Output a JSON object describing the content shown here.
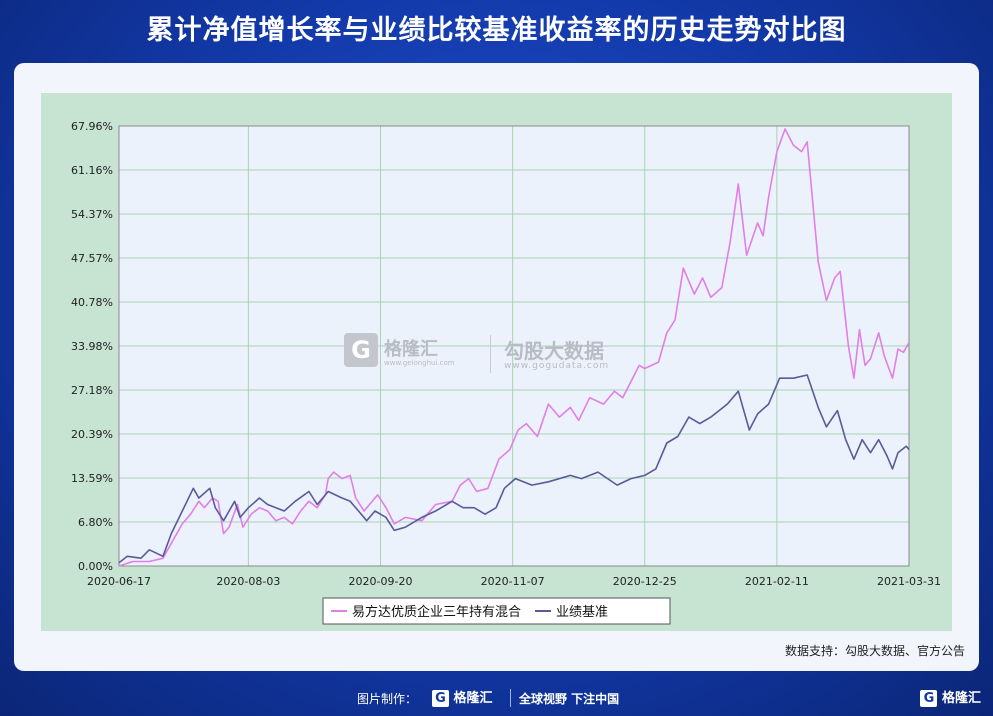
{
  "header": {
    "title": "累计净值增长率与业绩比较基准收益率的历史走势对比图"
  },
  "watermark": {
    "brand": "格隆汇",
    "brand_url": "www.gelonghui.com",
    "data_brand": "勾股大数据",
    "data_url": "www.gogudata.com",
    "logo_letter": "G"
  },
  "source_note": "数据支持：勾股大数据、官方公告",
  "footer": {
    "credit": "图片制作：",
    "logo_text": "格隆汇",
    "slogan": "全球视野 下注中国",
    "corner_logo": "格隆汇",
    "logo_letter": "G"
  },
  "colors": {
    "fund": "#e27ee8",
    "benchmark": "#5a5a9a",
    "plot_bg": "#ecf2fb",
    "frame_bg": "#c7e3d2",
    "grid": "#a9d3b4"
  },
  "chart_data": {
    "type": "line",
    "y_ticks": [
      "0.00%",
      "6.80%",
      "13.59%",
      "20.39%",
      "27.18%",
      "33.98%",
      "40.78%",
      "47.57%",
      "54.37%",
      "61.16%",
      "67.96%"
    ],
    "x_ticks": [
      "2020-06-17",
      "2020-08-03",
      "2020-09-20",
      "2020-11-07",
      "2020-12-25",
      "2021-02-11",
      "2021-03-31"
    ],
    "x_range": [
      "2020-06-17",
      "2021-03-31"
    ],
    "y_range": [
      0,
      67.96
    ],
    "y_unit": "%",
    "grid": true,
    "legend_position": "bottom-center",
    "series": [
      {
        "name": "易方达优质企业三年持有混合",
        "color": "#e27ee8",
        "points": [
          [
            "2020-06-17",
            0.0
          ],
          [
            "2020-06-22",
            0.7
          ],
          [
            "2020-06-28",
            0.7
          ],
          [
            "2020-07-03",
            1.2
          ],
          [
            "2020-07-06",
            3.5
          ],
          [
            "2020-07-10",
            6.5
          ],
          [
            "2020-07-13",
            8.0
          ],
          [
            "2020-07-16",
            10.0
          ],
          [
            "2020-07-18",
            9.0
          ],
          [
            "2020-07-21",
            10.5
          ],
          [
            "2020-07-23",
            10.0
          ],
          [
            "2020-07-25",
            5.0
          ],
          [
            "2020-07-27",
            6.0
          ],
          [
            "2020-07-30",
            9.5
          ],
          [
            "2020-08-01",
            6.0
          ],
          [
            "2020-08-04",
            8.0
          ],
          [
            "2020-08-07",
            9.0
          ],
          [
            "2020-08-10",
            8.5
          ],
          [
            "2020-08-13",
            7.0
          ],
          [
            "2020-08-16",
            7.5
          ],
          [
            "2020-08-19",
            6.5
          ],
          [
            "2020-08-22",
            8.5
          ],
          [
            "2020-08-25",
            10.0
          ],
          [
            "2020-08-28",
            9.0
          ],
          [
            "2020-08-31",
            11.0
          ],
          [
            "2020-09-01",
            13.5
          ],
          [
            "2020-09-03",
            14.5
          ],
          [
            "2020-09-06",
            13.5
          ],
          [
            "2020-09-09",
            14.0
          ],
          [
            "2020-09-11",
            10.5
          ],
          [
            "2020-09-14",
            8.5
          ],
          [
            "2020-09-16",
            9.5
          ],
          [
            "2020-09-19",
            11.0
          ],
          [
            "2020-09-22",
            9.0
          ],
          [
            "2020-09-25",
            6.5
          ],
          [
            "2020-09-29",
            7.5
          ],
          [
            "2020-10-05",
            7.0
          ],
          [
            "2020-10-10",
            9.5
          ],
          [
            "2020-10-16",
            10.0
          ],
          [
            "2020-10-19",
            12.5
          ],
          [
            "2020-10-22",
            13.5
          ],
          [
            "2020-10-25",
            11.5
          ],
          [
            "2020-10-29",
            12.0
          ],
          [
            "2020-11-02",
            16.5
          ],
          [
            "2020-11-06",
            18.0
          ],
          [
            "2020-11-09",
            21.0
          ],
          [
            "2020-11-12",
            22.0
          ],
          [
            "2020-11-16",
            20.0
          ],
          [
            "2020-11-20",
            25.0
          ],
          [
            "2020-11-24",
            23.0
          ],
          [
            "2020-11-28",
            24.5
          ],
          [
            "2020-12-01",
            22.5
          ],
          [
            "2020-12-05",
            26.0
          ],
          [
            "2020-12-10",
            25.0
          ],
          [
            "2020-12-14",
            27.0
          ],
          [
            "2020-12-17",
            26.0
          ],
          [
            "2020-12-20",
            28.5
          ],
          [
            "2020-12-23",
            31.0
          ],
          [
            "2020-12-25",
            30.5
          ],
          [
            "2020-12-30",
            31.5
          ],
          [
            "2021-01-02",
            36.0
          ],
          [
            "2021-01-05",
            38.0
          ],
          [
            "2021-01-08",
            46.0
          ],
          [
            "2021-01-12",
            42.0
          ],
          [
            "2021-01-15",
            44.5
          ],
          [
            "2021-01-18",
            41.5
          ],
          [
            "2021-01-22",
            43.0
          ],
          [
            "2021-01-25",
            50.0
          ],
          [
            "2021-01-28",
            59.0
          ],
          [
            "2021-01-31",
            48.0
          ],
          [
            "2021-02-04",
            53.0
          ],
          [
            "2021-02-06",
            51.0
          ],
          [
            "2021-02-08",
            57.0
          ],
          [
            "2021-02-11",
            64.0
          ],
          [
            "2021-02-14",
            67.5
          ],
          [
            "2021-02-17",
            65.0
          ],
          [
            "2021-02-20",
            64.0
          ],
          [
            "2021-02-22",
            65.5
          ],
          [
            "2021-02-26",
            47.0
          ],
          [
            "2021-03-01",
            41.0
          ],
          [
            "2021-03-04",
            44.5
          ],
          [
            "2021-03-06",
            45.5
          ],
          [
            "2021-03-09",
            34.0
          ],
          [
            "2021-03-11",
            29.0
          ],
          [
            "2021-03-13",
            36.5
          ],
          [
            "2021-03-15",
            31.0
          ],
          [
            "2021-03-17",
            32.0
          ],
          [
            "2021-03-20",
            36.0
          ],
          [
            "2021-03-22",
            32.5
          ],
          [
            "2021-03-25",
            29.0
          ],
          [
            "2021-03-27",
            33.5
          ],
          [
            "2021-03-29",
            33.0
          ],
          [
            "2021-03-31",
            34.5
          ]
        ]
      },
      {
        "name": "业绩基准",
        "color": "#5a5a9a",
        "points": [
          [
            "2020-06-17",
            0.5
          ],
          [
            "2020-06-20",
            1.5
          ],
          [
            "2020-06-25",
            1.2
          ],
          [
            "2020-06-28",
            2.5
          ],
          [
            "2020-07-03",
            1.5
          ],
          [
            "2020-07-06",
            5.0
          ],
          [
            "2020-07-10",
            8.5
          ],
          [
            "2020-07-14",
            12.0
          ],
          [
            "2020-07-16",
            10.5
          ],
          [
            "2020-07-20",
            12.0
          ],
          [
            "2020-07-22",
            9.0
          ],
          [
            "2020-07-25",
            7.0
          ],
          [
            "2020-07-27",
            8.5
          ],
          [
            "2020-07-29",
            10.0
          ],
          [
            "2020-07-31",
            7.5
          ],
          [
            "2020-08-03",
            9.0
          ],
          [
            "2020-08-07",
            10.5
          ],
          [
            "2020-08-10",
            9.5
          ],
          [
            "2020-08-16",
            8.5
          ],
          [
            "2020-08-20",
            10.0
          ],
          [
            "2020-08-25",
            11.5
          ],
          [
            "2020-08-28",
            9.5
          ],
          [
            "2020-09-01",
            11.5
          ],
          [
            "2020-09-06",
            10.5
          ],
          [
            "2020-09-09",
            10.0
          ],
          [
            "2020-09-12",
            8.5
          ],
          [
            "2020-09-15",
            7.0
          ],
          [
            "2020-09-18",
            8.5
          ],
          [
            "2020-09-22",
            7.5
          ],
          [
            "2020-09-25",
            5.5
          ],
          [
            "2020-09-29",
            6.0
          ],
          [
            "2020-10-05",
            7.5
          ],
          [
            "2020-10-10",
            8.5
          ],
          [
            "2020-10-16",
            10.0
          ],
          [
            "2020-10-20",
            9.0
          ],
          [
            "2020-10-24",
            9.0
          ],
          [
            "2020-10-28",
            8.0
          ],
          [
            "2020-11-01",
            9.0
          ],
          [
            "2020-11-04",
            12.0
          ],
          [
            "2020-11-08",
            13.5
          ],
          [
            "2020-11-14",
            12.5
          ],
          [
            "2020-11-20",
            13.0
          ],
          [
            "2020-11-28",
            14.0
          ],
          [
            "2020-12-02",
            13.5
          ],
          [
            "2020-12-08",
            14.5
          ],
          [
            "2020-12-15",
            12.5
          ],
          [
            "2020-12-20",
            13.5
          ],
          [
            "2020-12-25",
            14.0
          ],
          [
            "2020-12-29",
            15.0
          ],
          [
            "2021-01-02",
            19.0
          ],
          [
            "2021-01-06",
            20.0
          ],
          [
            "2021-01-10",
            23.0
          ],
          [
            "2021-01-14",
            22.0
          ],
          [
            "2021-01-18",
            23.0
          ],
          [
            "2021-01-24",
            25.0
          ],
          [
            "2021-01-28",
            27.0
          ],
          [
            "2021-02-01",
            21.0
          ],
          [
            "2021-02-04",
            23.5
          ],
          [
            "2021-02-08",
            25.0
          ],
          [
            "2021-02-12",
            29.0
          ],
          [
            "2021-02-17",
            29.0
          ],
          [
            "2021-02-22",
            29.5
          ],
          [
            "2021-02-26",
            24.5
          ],
          [
            "2021-03-01",
            21.5
          ],
          [
            "2021-03-05",
            24.0
          ],
          [
            "2021-03-08",
            19.5
          ],
          [
            "2021-03-11",
            16.5
          ],
          [
            "2021-03-14",
            19.5
          ],
          [
            "2021-03-17",
            17.5
          ],
          [
            "2021-03-20",
            19.5
          ],
          [
            "2021-03-23",
            17.0
          ],
          [
            "2021-03-25",
            15.0
          ],
          [
            "2021-03-27",
            17.5
          ],
          [
            "2021-03-30",
            18.5
          ],
          [
            "2021-03-31",
            18.0
          ]
        ]
      }
    ]
  }
}
